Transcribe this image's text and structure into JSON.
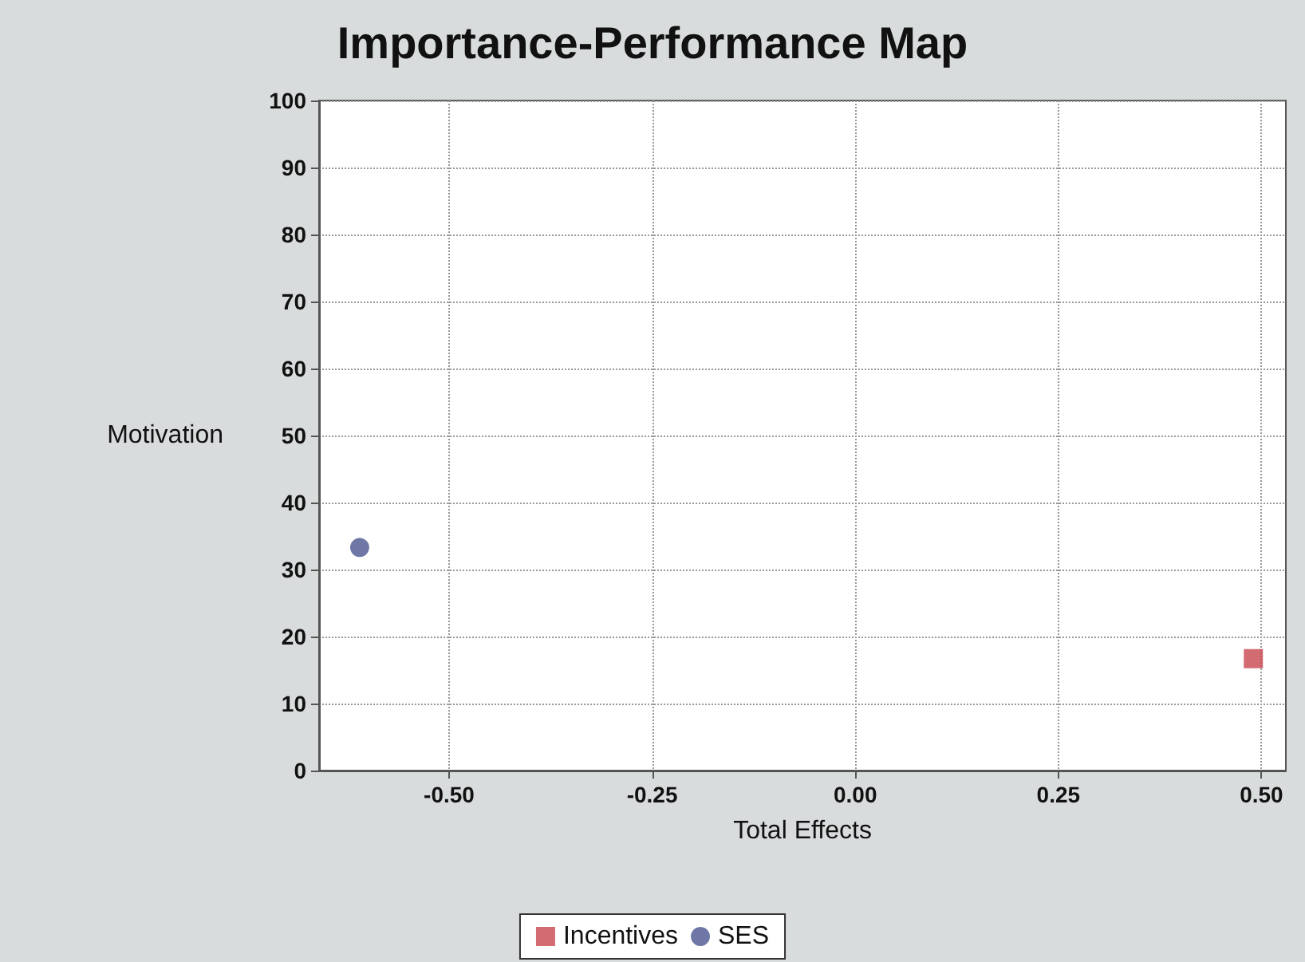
{
  "chart_data": {
    "type": "scatter",
    "title": "Importance-Performance Map",
    "xlabel": "Total Effects",
    "ylabel": "Motivation",
    "series": [
      {
        "name": "Incentives",
        "color": "#c8474f",
        "marker": "square",
        "x": [
          0.49
        ],
        "values": [
          16.7
        ]
      },
      {
        "name": "SES",
        "color": "#4a5590",
        "marker": "circle",
        "x": [
          -0.61
        ],
        "values": [
          33.3
        ]
      }
    ],
    "xlim": [
      -0.66,
      0.53
    ],
    "xticks": [
      {
        "value": -0.5,
        "label": "-0.50"
      },
      {
        "value": -0.25,
        "label": "-0.25"
      },
      {
        "value": 0,
        "label": "0.00"
      },
      {
        "value": 0.25,
        "label": "0.25"
      },
      {
        "value": 0.5,
        "label": "0.50"
      }
    ],
    "ylim": [
      0,
      100
    ],
    "yticks": [
      0,
      10,
      20,
      30,
      40,
      50,
      60,
      70,
      80,
      90,
      100
    ],
    "grid": true,
    "legend": "bottom",
    "line_style": "dotted"
  }
}
